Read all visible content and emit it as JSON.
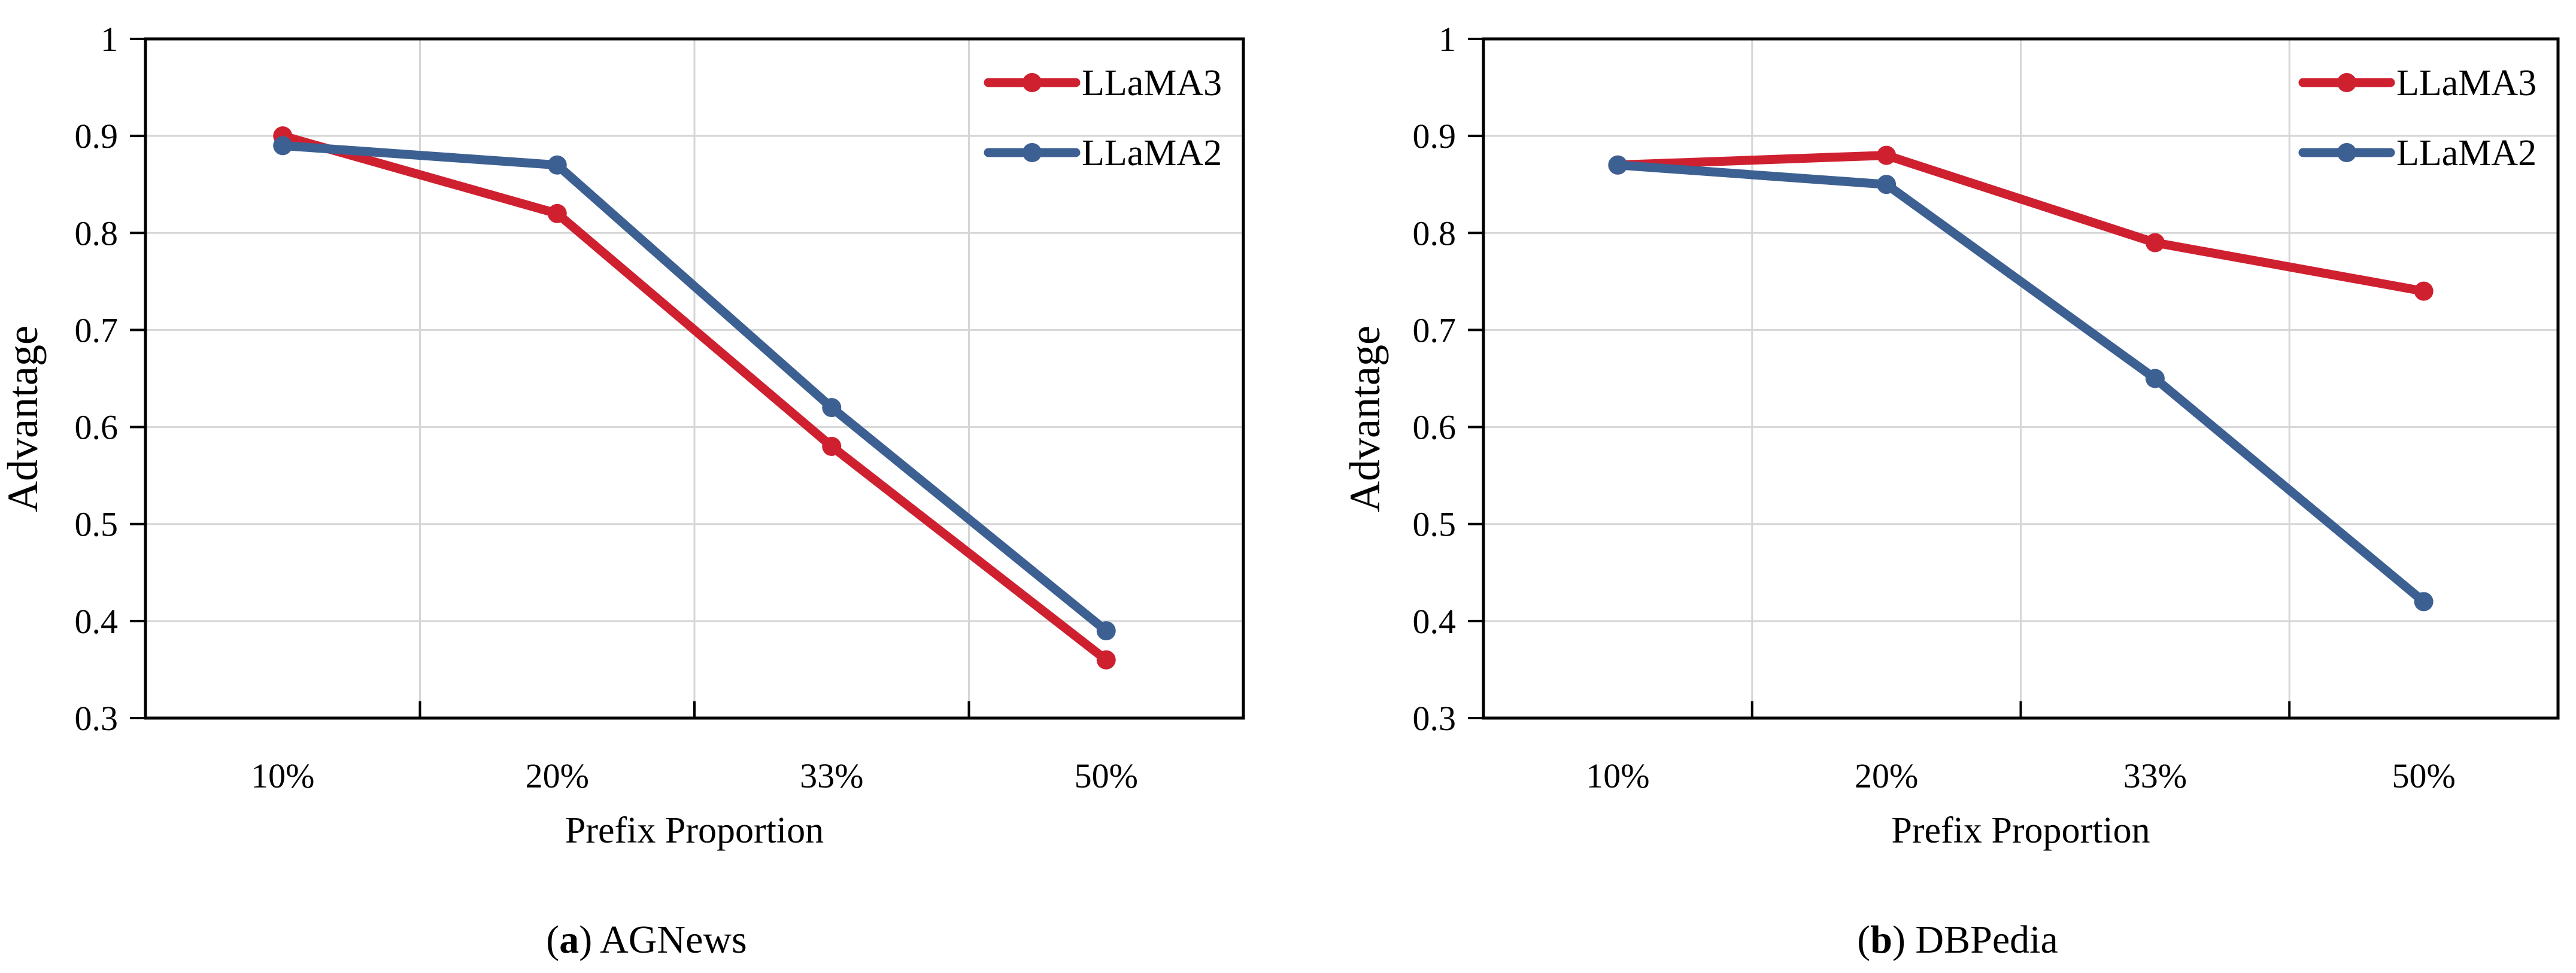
{
  "figure": {
    "background": "#FFFFFF",
    "grid_color": "#D6D6D6",
    "axis_color": "#000000",
    "series_colors": {
      "llama3": "#CF2030",
      "llama2": "#3D6092"
    }
  },
  "chart_data": [
    {
      "type": "line",
      "title": "(a) AGNews",
      "caption": {
        "pre": "(",
        "letter": "a",
        "post": ") AGNews"
      },
      "xlabel": "Prefix Proportion",
      "ylabel": "Advantage",
      "categories": [
        "10%",
        "20%",
        "33%",
        "50%"
      ],
      "y_ticks": [
        "1",
        "0.9",
        "0.8",
        "0.7",
        "0.6",
        "0.5",
        "0.4",
        "0.3"
      ],
      "ylim": [
        0.3,
        1.0
      ],
      "grid": true,
      "legend_position": "top-right-inside",
      "series": [
        {
          "name": "LLaMA3",
          "color": "#CF2030",
          "values": [
            0.9,
            0.82,
            0.58,
            0.36
          ]
        },
        {
          "name": "LLaMA2",
          "color": "#3D6092",
          "values": [
            0.89,
            0.87,
            0.62,
            0.39
          ]
        }
      ]
    },
    {
      "type": "line",
      "title": "(b) DBPedia",
      "caption": {
        "pre": "(",
        "letter": "b",
        "post": ") DBPedia"
      },
      "xlabel": "Prefix Proportion",
      "ylabel": "Advantage",
      "categories": [
        "10%",
        "20%",
        "33%",
        "50%"
      ],
      "y_ticks": [
        "1",
        "0.9",
        "0.8",
        "0.7",
        "0.6",
        "0.5",
        "0.4",
        "0.3"
      ],
      "ylim": [
        0.3,
        1.0
      ],
      "grid": true,
      "legend_position": "top-right-inside",
      "series": [
        {
          "name": "LLaMA3",
          "color": "#CF2030",
          "values": [
            0.87,
            0.88,
            0.79,
            0.74
          ]
        },
        {
          "name": "LLaMA2",
          "color": "#3D6092",
          "values": [
            0.87,
            0.85,
            0.65,
            0.42
          ]
        }
      ]
    }
  ]
}
